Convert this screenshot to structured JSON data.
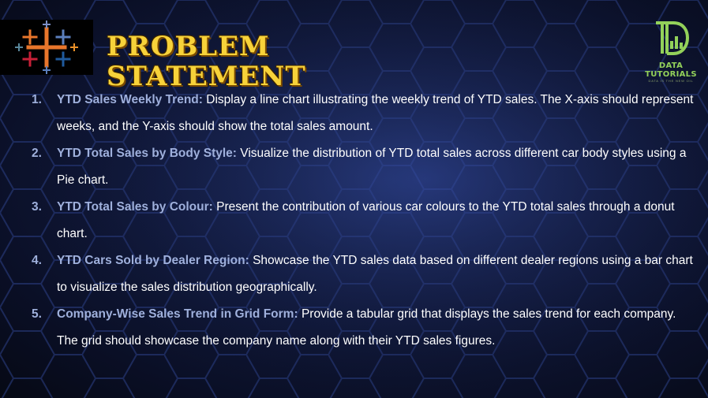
{
  "header": {
    "title_line1": "PROBLEM",
    "title_line2": "STATEMENT"
  },
  "logos": {
    "left_icon": "tableau-cross-logo-icon",
    "right_brand": "DATA TUTORIALS",
    "right_tagline": "DATA IS THE NEW OIL"
  },
  "items": [
    {
      "number": "1.",
      "label": "YTD Sales Weekly Trend:",
      "text": "Display a line chart illustrating the weekly trend of YTD sales. The X-axis should represent weeks, and the Y-axis should show the total sales amount."
    },
    {
      "number": "2.",
      "label": "YTD Total Sales by Body Style:",
      "text": "Visualize the distribution of YTD total sales across different car body styles using a Pie chart."
    },
    {
      "number": "3.",
      "label": "YTD Total Sales by Colour:",
      "text": "Present the contribution of various car colours to the YTD total sales through a donut chart."
    },
    {
      "number": "4.",
      "label": "YTD Cars Sold by Dealer Region:",
      "text": "Showcase the YTD sales data based on different dealer regions using a bar chart to visualize the sales distribution geographically."
    },
    {
      "number": "5.",
      "label": "Company-Wise Sales Trend in Grid Form:",
      "text": "Provide a tabular grid that displays the sales trend for each company. The grid should showcase the company name along with their YTD sales figures."
    }
  ],
  "colors": {
    "title": "#f7d23a",
    "label": "#9fb0dc",
    "body_text": "#ffffff",
    "background": "#121b40",
    "brand_green": "#93d15a"
  }
}
